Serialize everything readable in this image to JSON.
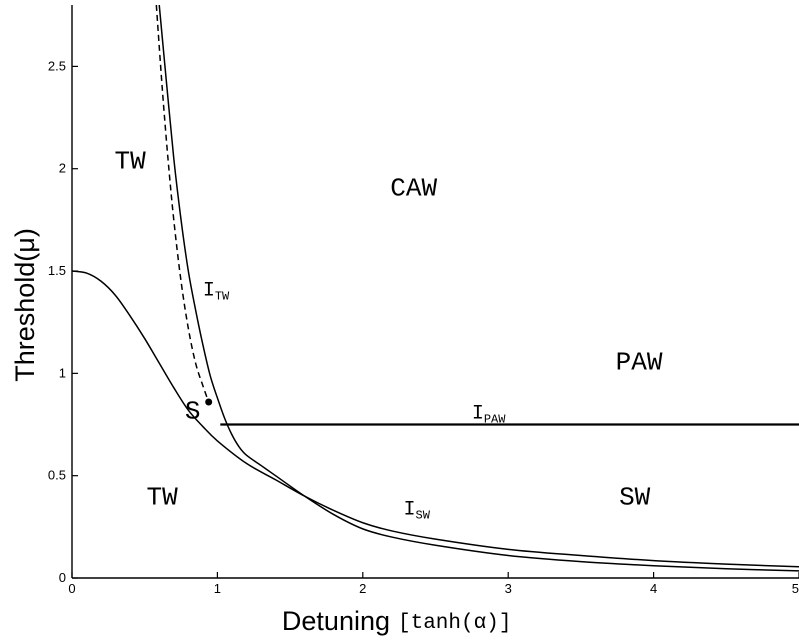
{
  "chart_data": {
    "type": "line",
    "xlabel_main": "Detuning",
    "xlabel_unit": "[tanh(α)]",
    "ylabel": "Threshold(μ)",
    "xlim": [
      0,
      5
    ],
    "ylim": [
      0,
      2.8
    ],
    "x_ticks": [
      0,
      1,
      2,
      3,
      4,
      5
    ],
    "x_tick_labels": [
      "0",
      "1",
      "2",
      "3",
      "4",
      "5"
    ],
    "y_ticks": [
      0,
      0.5,
      1,
      1.5,
      2,
      2.5
    ],
    "y_tick_labels": [
      "0",
      "0.5",
      "1",
      "1.5",
      "2",
      "2.5"
    ],
    "grid": false,
    "series": [
      {
        "style": "solid",
        "points": [
          [
            0,
            1.5
          ],
          [
            0.1,
            1.49
          ],
          [
            0.2,
            1.45
          ],
          [
            0.3,
            1.38
          ],
          [
            0.4,
            1.28
          ],
          [
            0.5,
            1.17
          ],
          [
            0.6,
            1.05
          ],
          [
            0.7,
            0.93
          ],
          [
            0.8,
            0.82
          ],
          [
            0.9,
            0.74
          ],
          [
            1.0,
            0.67
          ],
          [
            1.2,
            0.56
          ],
          [
            1.4,
            0.48
          ],
          [
            1.6,
            0.4
          ],
          [
            1.8,
            0.33
          ],
          [
            2.0,
            0.27
          ],
          [
            2.2,
            0.23
          ],
          [
            2.5,
            0.19
          ],
          [
            3.0,
            0.14
          ],
          [
            3.5,
            0.11
          ],
          [
            4.0,
            0.085
          ],
          [
            4.5,
            0.068
          ],
          [
            5.0,
            0.055
          ]
        ]
      },
      {
        "style": "solid",
        "points": [
          [
            0.6,
            2.8
          ],
          [
            0.65,
            2.42
          ],
          [
            0.7,
            2.05
          ],
          [
            0.75,
            1.75
          ],
          [
            0.8,
            1.5
          ],
          [
            0.85,
            1.31
          ],
          [
            0.9,
            1.14
          ],
          [
            0.95,
            0.99
          ],
          [
            1.0,
            0.88
          ],
          [
            1.05,
            0.78
          ],
          [
            1.1,
            0.7
          ],
          [
            1.15,
            0.64
          ],
          [
            1.2,
            0.6
          ],
          [
            1.3,
            0.55
          ],
          [
            1.4,
            0.5
          ],
          [
            1.6,
            0.4
          ],
          [
            1.8,
            0.31
          ],
          [
            2.0,
            0.24
          ],
          [
            2.2,
            0.2
          ],
          [
            2.5,
            0.16
          ],
          [
            3.0,
            0.11
          ],
          [
            3.5,
            0.08
          ],
          [
            4.0,
            0.06
          ],
          [
            4.5,
            0.045
          ],
          [
            5.0,
            0.035
          ]
        ]
      },
      {
        "style": "dashed",
        "points": [
          [
            0.58,
            2.8
          ],
          [
            0.62,
            2.4
          ],
          [
            0.66,
            2.05
          ],
          [
            0.7,
            1.75
          ],
          [
            0.75,
            1.45
          ],
          [
            0.8,
            1.22
          ],
          [
            0.85,
            1.05
          ],
          [
            0.9,
            0.94
          ],
          [
            0.94,
            0.86
          ]
        ]
      },
      {
        "style": "thick",
        "points": [
          [
            1.02,
            0.75
          ],
          [
            5.0,
            0.75
          ]
        ]
      }
    ],
    "markers": [
      {
        "x": 0.94,
        "y": 0.86
      }
    ],
    "region_labels": [
      {
        "text": "TW",
        "x": 0.4,
        "y": 2.0
      },
      {
        "text": "CAW",
        "x": 2.35,
        "y": 1.87
      },
      {
        "text": "PAW",
        "x": 3.9,
        "y": 1.02
      },
      {
        "text": "S",
        "x": 0.83,
        "y": 0.78
      },
      {
        "text": "TW",
        "x": 0.62,
        "y": 0.36
      },
      {
        "text": "SW",
        "x": 3.87,
        "y": 0.36
      }
    ],
    "curve_labels": [
      {
        "main": "I",
        "sub": "TW",
        "x": 0.9,
        "y": 1.38
      },
      {
        "main": "I",
        "sub": "PAW",
        "x": 2.75,
        "y": 0.78
      },
      {
        "main": "I",
        "sub": "SW",
        "x": 2.28,
        "y": 0.31
      }
    ]
  }
}
